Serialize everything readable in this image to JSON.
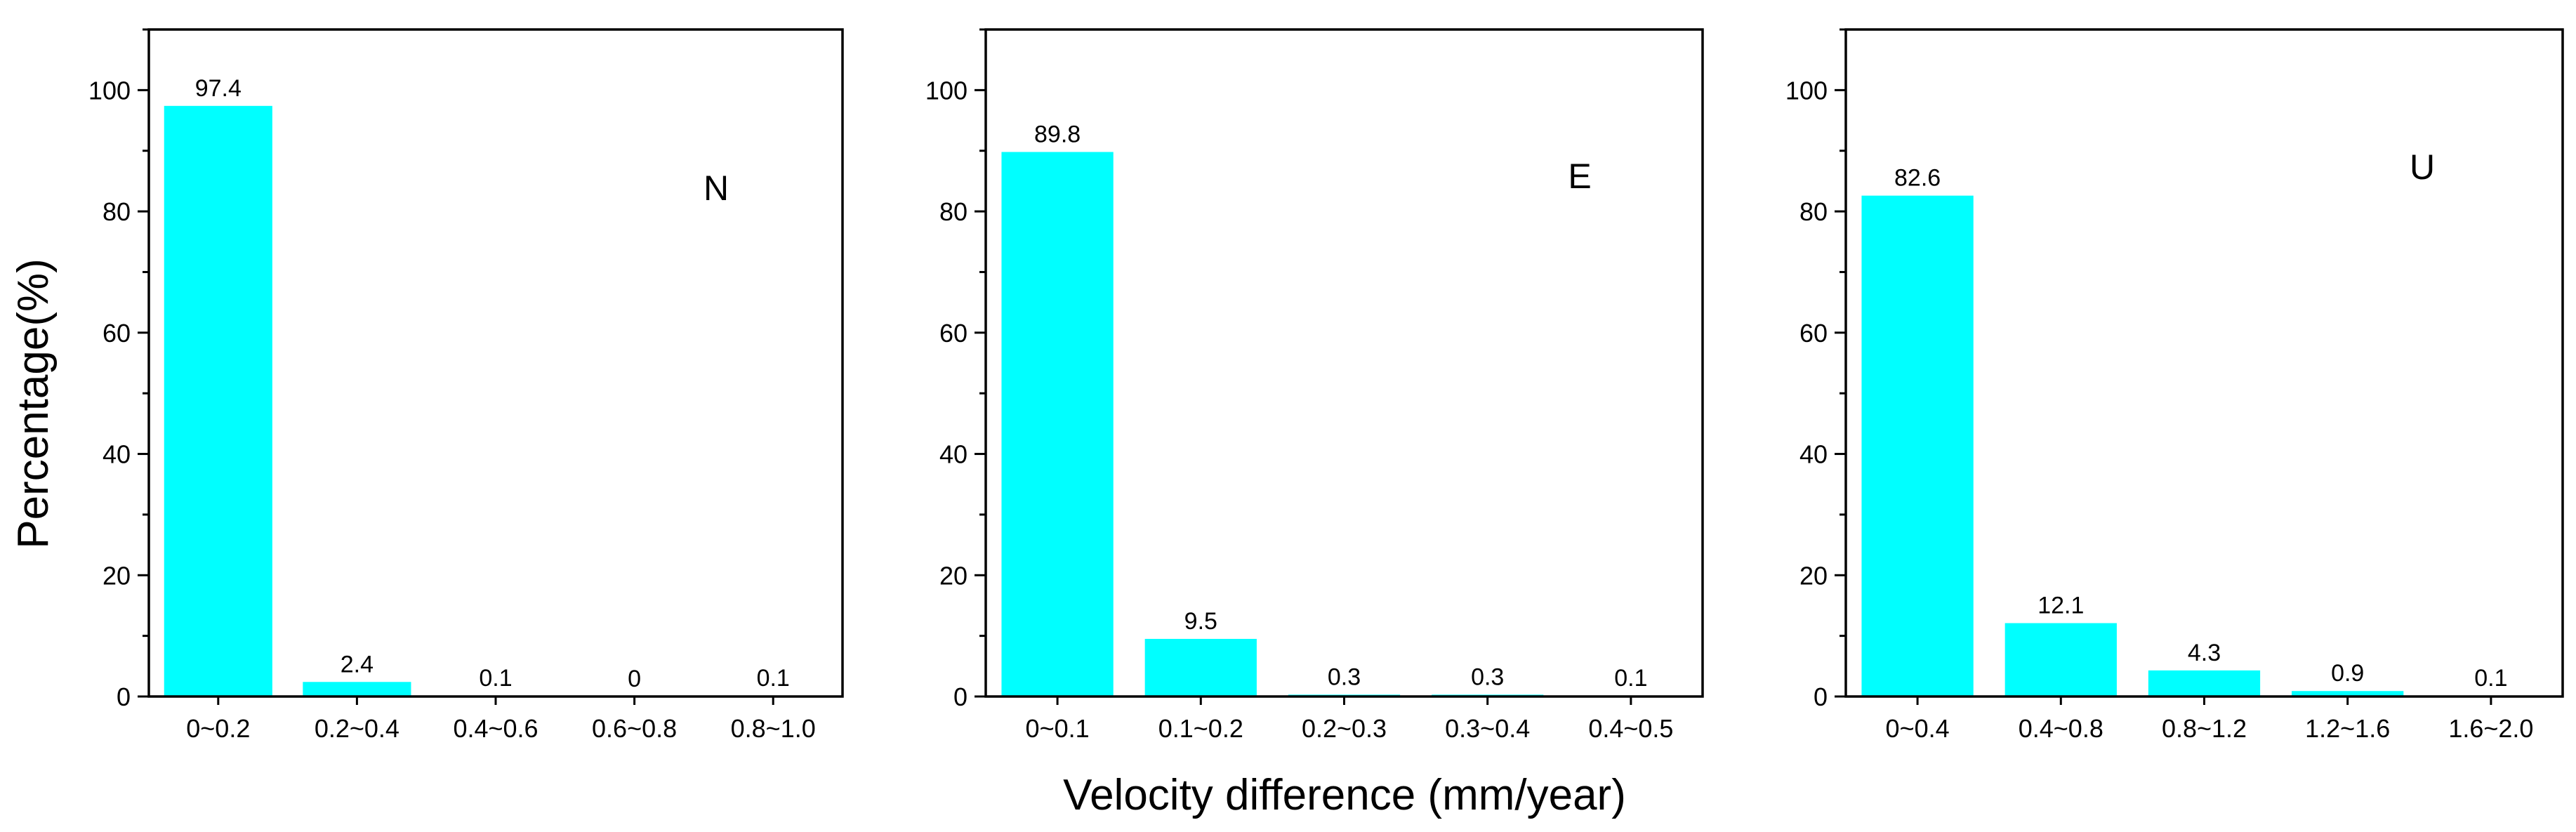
{
  "figure": {
    "ylabel": "Percentage(%)",
    "xlabel": "Velocity difference (mm/year)",
    "colors": {
      "bar": "#00FFFF",
      "axis": "#000000",
      "background": "#FFFFFF"
    }
  },
  "chart_data": [
    {
      "type": "bar",
      "title": "N",
      "categories": [
        "0~0.2",
        "0.2~0.4",
        "0.4~0.6",
        "0.6~0.8",
        "0.8~1.0"
      ],
      "values": [
        97.4,
        2.4,
        0.1,
        0,
        0.1
      ],
      "value_labels": [
        "97.4",
        "2.4",
        "0.1",
        "0",
        "0.1"
      ],
      "ylabel": "Percentage(%)",
      "xlabel": "",
      "ylim": [
        0,
        110
      ],
      "yticks": [
        0,
        20,
        40,
        60,
        80,
        100
      ],
      "legend": "none",
      "grid": false
    },
    {
      "type": "bar",
      "title": "E",
      "categories": [
        "0~0.1",
        "0.1~0.2",
        "0.2~0.3",
        "0.3~0.4",
        "0.4~0.5"
      ],
      "values": [
        89.8,
        9.5,
        0.3,
        0.3,
        0.1
      ],
      "value_labels": [
        "89.8",
        "9.5",
        "0.3",
        "0.3",
        "0.1"
      ],
      "ylabel": "",
      "xlabel": "Velocity difference (mm/year)",
      "ylim": [
        0,
        110
      ],
      "yticks": [
        0,
        20,
        40,
        60,
        80,
        100
      ],
      "legend": "none",
      "grid": false
    },
    {
      "type": "bar",
      "title": "U",
      "categories": [
        "0~0.4",
        "0.4~0.8",
        "0.8~1.2",
        "1.2~1.6",
        "1.6~2.0"
      ],
      "values": [
        82.6,
        12.1,
        4.3,
        0.9,
        0.1
      ],
      "value_labels": [
        "82.6",
        "12.1",
        "4.3",
        "0.9",
        "0.1"
      ],
      "ylabel": "",
      "xlabel": "",
      "ylim": [
        0,
        110
      ],
      "yticks": [
        0,
        20,
        40,
        60,
        80,
        100
      ],
      "legend": "none",
      "grid": false
    }
  ]
}
